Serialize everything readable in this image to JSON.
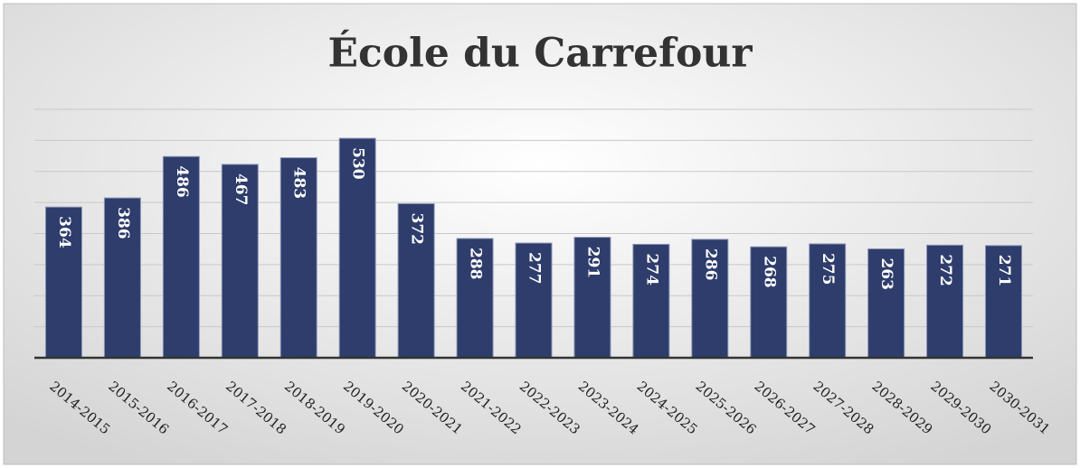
{
  "chart_data": {
    "type": "bar",
    "title": "École du Carrefour",
    "categories": [
      "2014-2015",
      "2015-2016",
      "2016-2017",
      "2017-2018",
      "2018-2019",
      "2019-2020",
      "2020-2021",
      "2021-2022",
      "2022-2023",
      "2023-2024",
      "2024-2025",
      "2025-2026",
      "2026-2027",
      "2027-2028",
      "2028-2029",
      "2029-2030",
      "2030-2031"
    ],
    "values": [
      364,
      386,
      486,
      467,
      483,
      530,
      372,
      288,
      277,
      291,
      274,
      286,
      268,
      275,
      263,
      272,
      271
    ],
    "color": "#2e3d6b",
    "ylim": [
      0,
      600
    ],
    "yticks": [
      0,
      75,
      150,
      225,
      300,
      375,
      450,
      525,
      600
    ],
    "grid": true
  }
}
